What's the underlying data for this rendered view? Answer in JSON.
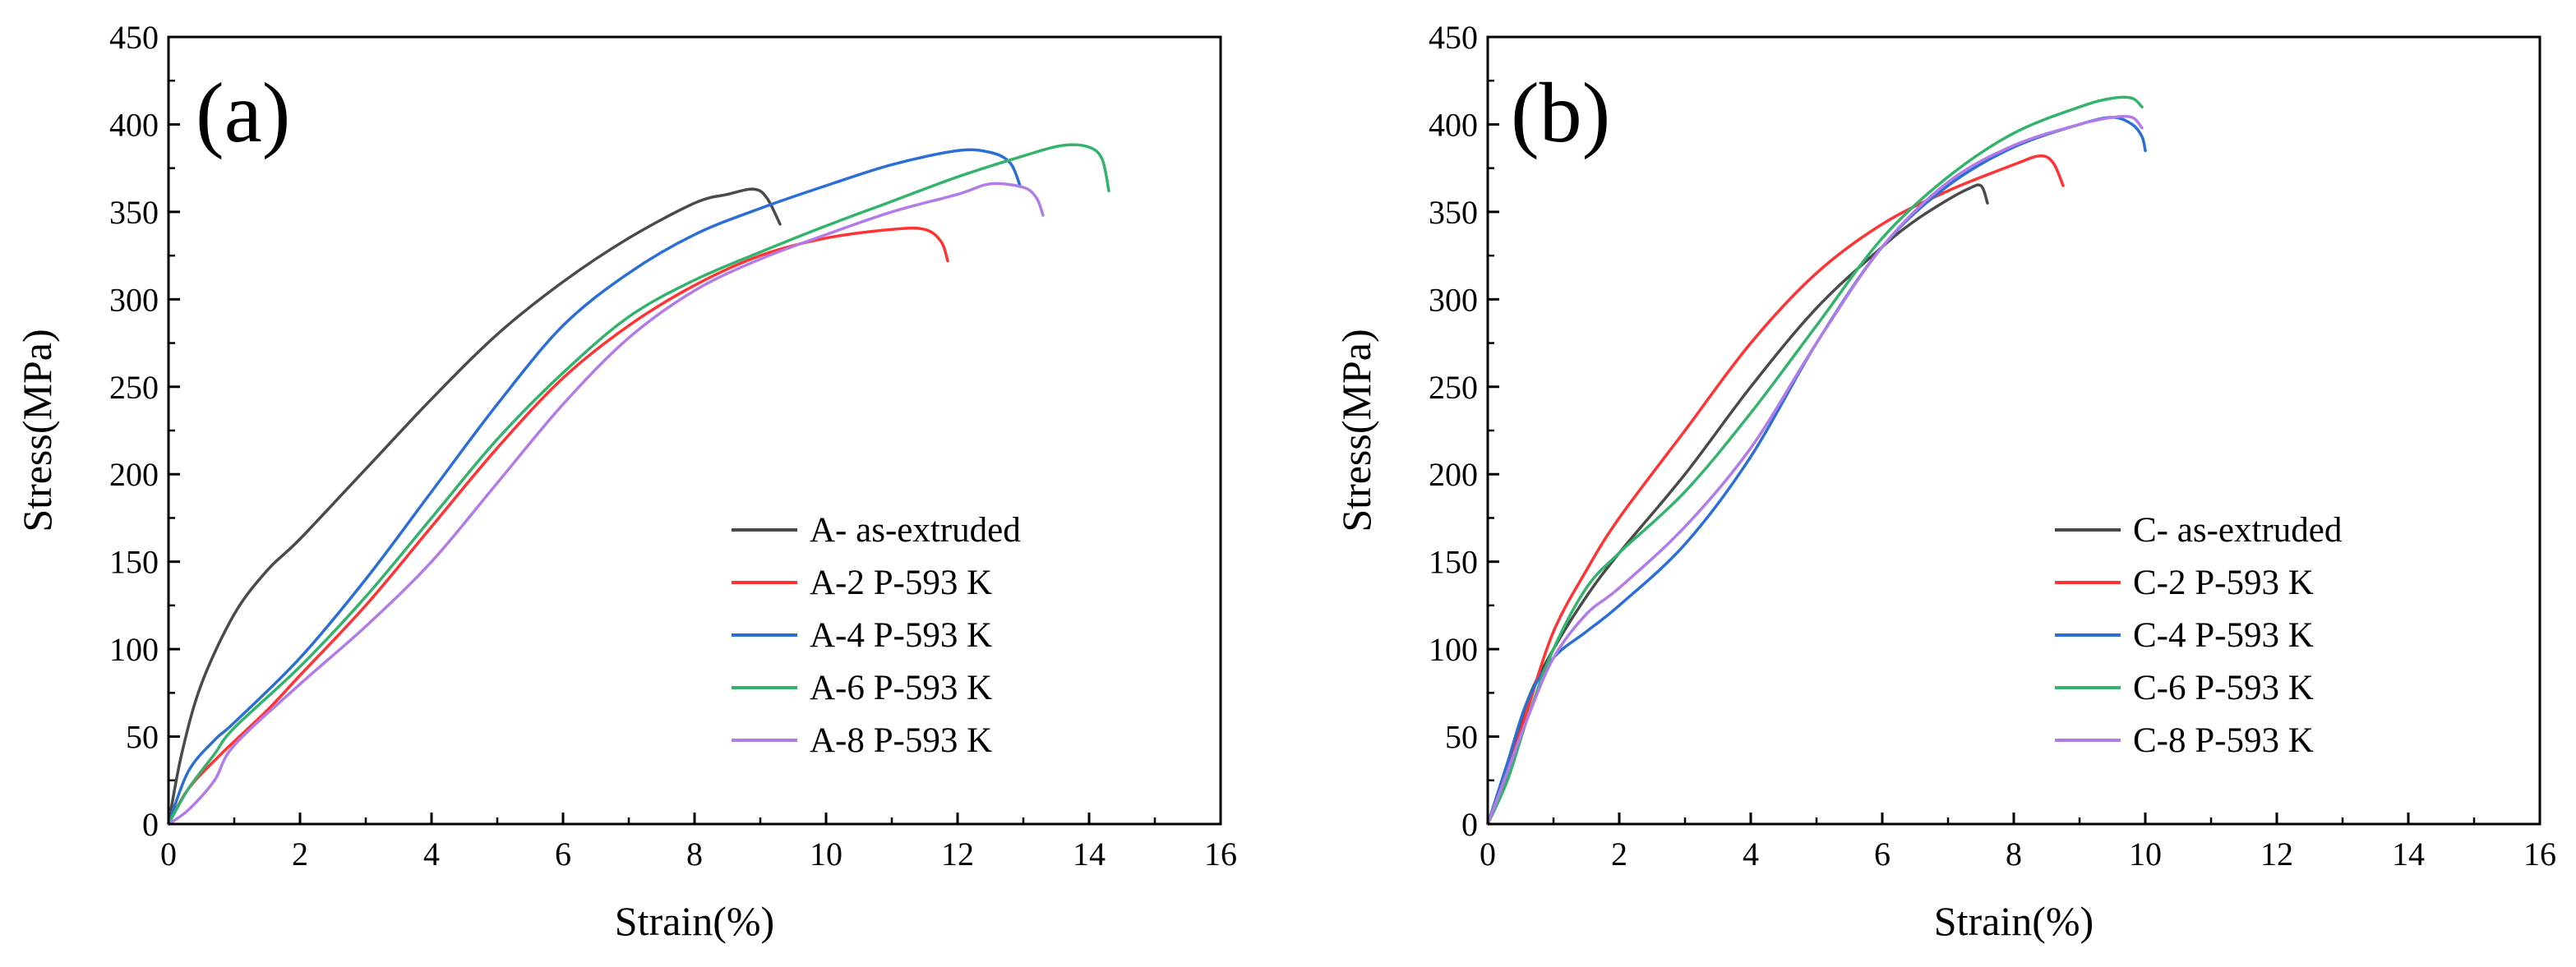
{
  "chart_data": [
    {
      "type": "line",
      "panel_label": "(a)",
      "xlabel": "Strain(%)",
      "ylabel": "Stress(MPa)",
      "xlim": [
        0,
        16
      ],
      "ylim": [
        0,
        450
      ],
      "xticks": [
        0,
        2,
        4,
        6,
        8,
        10,
        12,
        14,
        16
      ],
      "yticks": [
        0,
        50,
        100,
        150,
        200,
        250,
        300,
        350,
        400,
        450
      ],
      "xtick_labels": [
        "0",
        "2",
        "4",
        "6",
        "8",
        "10",
        "12",
        "14",
        "16"
      ],
      "ytick_labels": [
        "0",
        "50",
        "100",
        "150",
        "200",
        "250",
        "300",
        "350",
        "400",
        "450"
      ],
      "legend_position": "bottom-right",
      "grid": false,
      "series": [
        {
          "name": "A- as-extruded",
          "color": "#4a4a4a",
          "x": [
            0,
            0.2,
            0.5,
            1.0,
            1.5,
            2.0,
            3.0,
            4.0,
            5.0,
            6.0,
            7.0,
            8.0,
            8.5,
            8.9,
            9.1,
            9.3
          ],
          "y": [
            0,
            40,
            80,
            120,
            145,
            163,
            203,
            243,
            280,
            310,
            335,
            355,
            360,
            363,
            358,
            343
          ]
        },
        {
          "name": "A-2 P-593 K",
          "color": "#ff3333",
          "x": [
            0,
            0.3,
            0.8,
            1.5,
            2.0,
            3.0,
            4.0,
            5.0,
            6.0,
            7.0,
            8.0,
            9.0,
            10.0,
            11.0,
            11.5,
            11.75,
            11.85
          ],
          "y": [
            0,
            20,
            40,
            65,
            85,
            125,
            170,
            215,
            255,
            285,
            308,
            325,
            335,
            340,
            340,
            333,
            322
          ]
        },
        {
          "name": "A-4 P-593 K",
          "color": "#2b6fd6",
          "x": [
            0,
            0.3,
            0.7,
            1.0,
            2.0,
            3.0,
            4.0,
            5.0,
            6.0,
            7.0,
            8.0,
            9.0,
            10.0,
            11.0,
            12.0,
            12.5,
            12.8,
            12.95
          ],
          "y": [
            0,
            30,
            48,
            58,
            95,
            140,
            190,
            240,
            285,
            315,
            337,
            352,
            365,
            377,
            385,
            384,
            378,
            365
          ]
        },
        {
          "name": "A-6 P-593 K",
          "color": "#33b36b",
          "x": [
            0,
            0.3,
            0.7,
            1.0,
            2.0,
            3.0,
            4.0,
            5.0,
            6.0,
            7.0,
            8.0,
            9.0,
            10.0,
            11.0,
            12.0,
            13.0,
            13.6,
            14.0,
            14.2,
            14.3
          ],
          "y": [
            0,
            20,
            40,
            55,
            90,
            130,
            175,
            220,
            258,
            290,
            311,
            327,
            342,
            356,
            370,
            382,
            388,
            387,
            380,
            362
          ]
        },
        {
          "name": "A-8 P-593 K",
          "color": "#b27ce8",
          "x": [
            0,
            0.3,
            0.7,
            1.0,
            2.0,
            3.0,
            4.0,
            5.0,
            6.0,
            7.0,
            8.0,
            9.0,
            10.0,
            11.0,
            12.0,
            12.5,
            13.0,
            13.2,
            13.3
          ],
          "y": [
            0,
            8,
            25,
            45,
            80,
            113,
            150,
            195,
            240,
            278,
            305,
            323,
            337,
            350,
            360,
            366,
            364,
            358,
            348
          ]
        }
      ]
    },
    {
      "type": "line",
      "panel_label": "(b)",
      "xlabel": "Strain(%)",
      "ylabel": "Stress(MPa)",
      "xlim": [
        0,
        16
      ],
      "ylim": [
        0,
        450
      ],
      "xticks": [
        0,
        2,
        4,
        6,
        8,
        10,
        12,
        14,
        16
      ],
      "yticks": [
        0,
        50,
        100,
        150,
        200,
        250,
        300,
        350,
        400,
        450
      ],
      "xtick_labels": [
        "0",
        "2",
        "4",
        "6",
        "8",
        "10",
        "12",
        "14",
        "16"
      ],
      "ytick_labels": [
        "0",
        "50",
        "100",
        "150",
        "200",
        "250",
        "300",
        "350",
        "400",
        "450"
      ],
      "legend_position": "bottom-right",
      "grid": false,
      "series": [
        {
          "name": "C- as-extruded",
          "color": "#4a4a4a",
          "x": [
            0,
            0.3,
            0.6,
            1.0,
            1.5,
            2.0,
            3.0,
            4.0,
            5.0,
            6.0,
            6.5,
            7.0,
            7.3,
            7.5,
            7.6
          ],
          "y": [
            0,
            30,
            70,
            100,
            130,
            155,
            200,
            250,
            295,
            330,
            345,
            357,
            363,
            365,
            355
          ]
        },
        {
          "name": "C-2 P-593 K",
          "color": "#ff3333",
          "x": [
            0,
            0.3,
            0.6,
            1.0,
            1.5,
            2.0,
            3.0,
            4.0,
            5.0,
            6.0,
            7.0,
            8.0,
            8.4,
            8.6,
            8.75
          ],
          "y": [
            0,
            30,
            65,
            110,
            145,
            175,
            225,
            275,
            315,
            343,
            362,
            377,
            382,
            378,
            365
          ]
        },
        {
          "name": "C-4 P-593 K",
          "color": "#2b6fd6",
          "x": [
            0,
            0.3,
            0.6,
            1.0,
            1.5,
            2.0,
            3.0,
            4.0,
            5.0,
            6.0,
            7.0,
            8.0,
            9.0,
            9.5,
            9.8,
            9.95,
            10.0
          ],
          "y": [
            0,
            35,
            70,
            95,
            110,
            125,
            160,
            210,
            275,
            330,
            365,
            387,
            400,
            404,
            400,
            393,
            385
          ]
        },
        {
          "name": "C-6 P-593 K",
          "color": "#33b36b",
          "x": [
            0,
            0.3,
            0.6,
            1.0,
            1.5,
            2.0,
            3.0,
            4.0,
            5.0,
            6.0,
            7.0,
            8.0,
            9.0,
            9.5,
            9.8,
            9.95
          ],
          "y": [
            0,
            25,
            60,
            100,
            135,
            155,
            190,
            235,
            285,
            335,
            370,
            395,
            410,
            415,
            415,
            410
          ]
        },
        {
          "name": "C-8 P-593 K",
          "color": "#b27ce8",
          "x": [
            0,
            0.3,
            0.6,
            1.0,
            1.5,
            2.0,
            3.0,
            4.0,
            5.0,
            6.0,
            7.0,
            8.0,
            9.0,
            9.5,
            9.8,
            9.95
          ],
          "y": [
            0,
            30,
            60,
            95,
            120,
            135,
            170,
            215,
            275,
            330,
            367,
            388,
            400,
            404,
            404,
            398
          ]
        }
      ]
    }
  ]
}
